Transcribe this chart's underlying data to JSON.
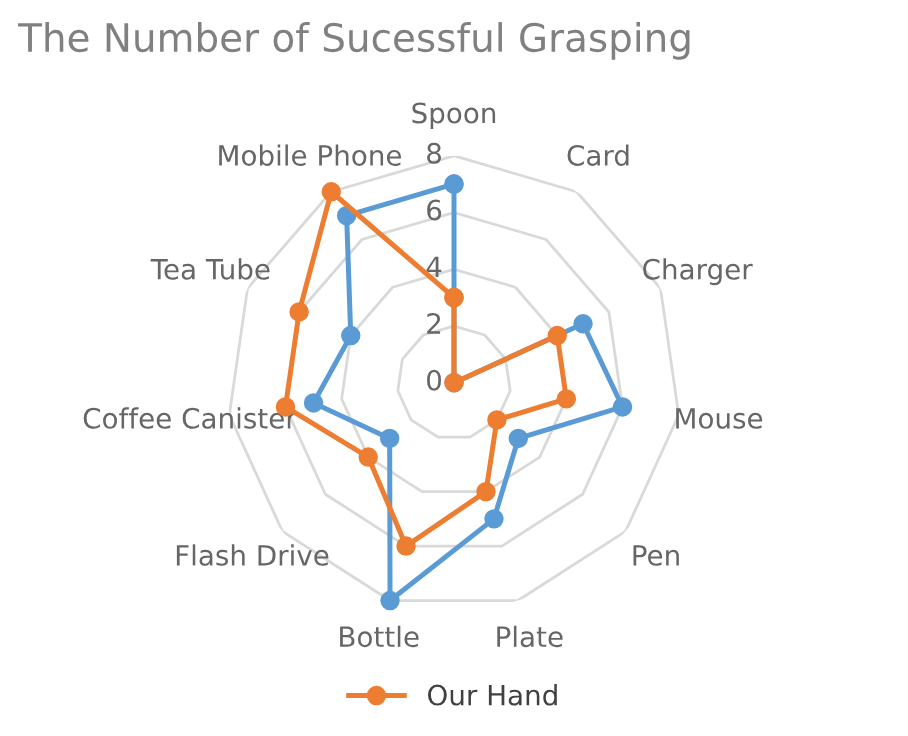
{
  "chart_data": {
    "type": "radar",
    "title": "The Number of Sucessful Grasping",
    "categories": [
      "Spoon",
      "Card",
      "Charger",
      "Mouse",
      "Pen",
      "Plate",
      "Bottle",
      "Flash Drive",
      "Coffee Canister",
      "Tea Tube",
      "Mobile Phone"
    ],
    "series": [
      {
        "color": "#5b9bd5",
        "values": [
          7,
          0,
          5,
          6,
          3,
          5,
          8,
          3,
          5,
          4,
          7
        ]
      },
      {
        "name": "Our Hand",
        "color": "#ed7d31",
        "values": [
          3,
          0,
          4,
          4,
          2,
          4,
          6,
          4,
          6,
          6,
          8
        ]
      }
    ],
    "ylim": [
      0,
      8
    ],
    "yticks": [
      0,
      2,
      4,
      6,
      8
    ],
    "grid": true,
    "legend": "bottom",
    "marker": "circle",
    "line_style": "solid"
  }
}
